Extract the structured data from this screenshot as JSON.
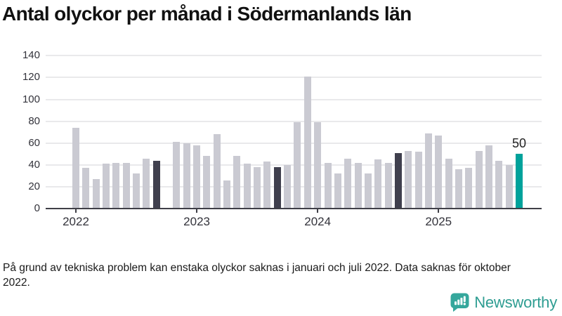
{
  "title": "Antal olyckor per månad i Södermanlands län",
  "footnote": "På grund av tekniska problem kan enstaka olyckor saknas i januari och juli 2022. Data saknas för oktober 2022.",
  "brand": {
    "name": "Newsworthy"
  },
  "colors": {
    "bar_default": "#cacad2",
    "bar_dark": "#40404e",
    "bar_accent": "#00a29b",
    "gridline": "#e9e9eb",
    "axis": "#3f3f47",
    "tick_text": "#33333b",
    "brand_teal": "#2e9d92",
    "brand_icon_teal": "#35a79c"
  },
  "chart_data": {
    "type": "bar",
    "title": "Antal olyckor per månad i Södermanlands län",
    "xlabel": "",
    "ylabel": "",
    "ylim": [
      0,
      140
    ],
    "yticks": [
      0,
      20,
      40,
      60,
      80,
      100,
      120,
      140
    ],
    "grid": true,
    "x": [
      "2022-01",
      "2022-02",
      "2022-03",
      "2022-04",
      "2022-05",
      "2022-06",
      "2022-07",
      "2022-08",
      "2022-09",
      "2022-10",
      "2022-11",
      "2022-12",
      "2023-01",
      "2023-02",
      "2023-03",
      "2023-04",
      "2023-05",
      "2023-06",
      "2023-07",
      "2023-08",
      "2023-09",
      "2023-10",
      "2023-11",
      "2023-12",
      "2024-01",
      "2024-02",
      "2024-03",
      "2024-04",
      "2024-05",
      "2024-06",
      "2024-07",
      "2024-08",
      "2024-09",
      "2024-10",
      "2024-11",
      "2024-12",
      "2025-01",
      "2025-02",
      "2025-03",
      "2025-04",
      "2025-05",
      "2025-06",
      "2025-07",
      "2025-08",
      "2025-09"
    ],
    "values": [
      74,
      37,
      27,
      41,
      42,
      42,
      32,
      46,
      44,
      null,
      61,
      60,
      58,
      48,
      68,
      26,
      48,
      41,
      38,
      43,
      38,
      40,
      79,
      121,
      79,
      42,
      32,
      46,
      42,
      32,
      45,
      42,
      51,
      53,
      52,
      69,
      67,
      46,
      36,
      37,
      53,
      58,
      44,
      40,
      50
    ],
    "missing_months": [
      "2022-10"
    ],
    "highlight_dark_months": [
      "2022-09",
      "2023-09",
      "2024-09"
    ],
    "highlight_accent_month": "2025-09",
    "xticks": [
      {
        "label": "2022",
        "month": "2022-01"
      },
      {
        "label": "2023",
        "month": "2023-01"
      },
      {
        "label": "2024",
        "month": "2024-01"
      },
      {
        "label": "2025",
        "month": "2025-01"
      }
    ],
    "annotation": {
      "text": "50",
      "month": "2025-09"
    },
    "legend": null
  }
}
